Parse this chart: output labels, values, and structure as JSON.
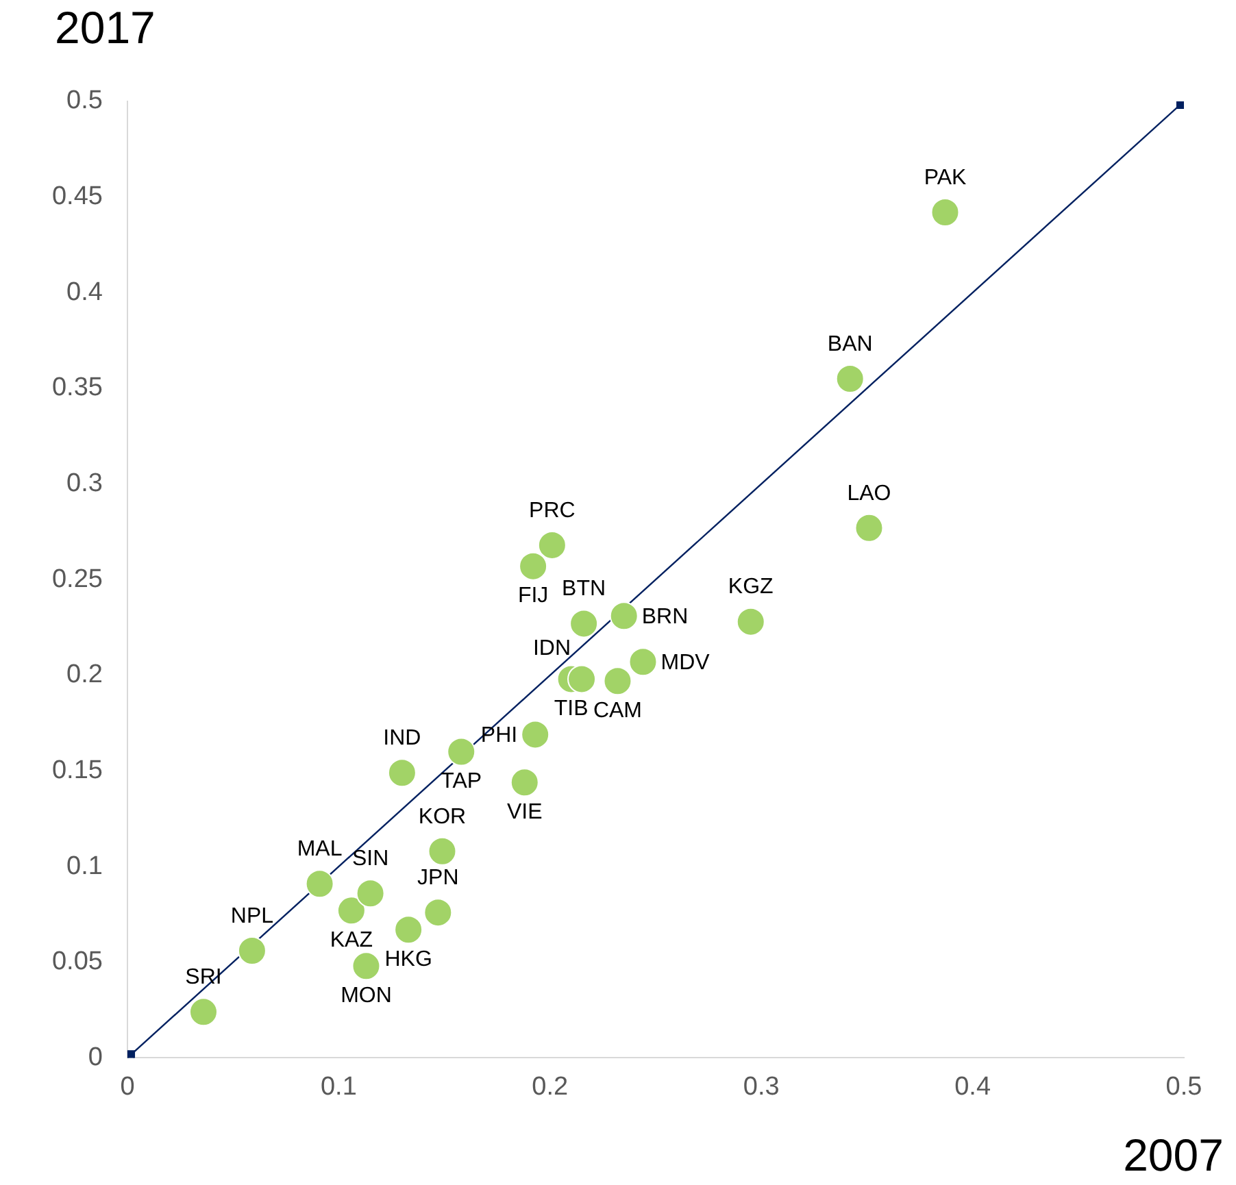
{
  "chart_data": {
    "type": "scatter",
    "xlabel": "2007",
    "ylabel": "2017",
    "xlim": [
      0,
      0.5
    ],
    "xticks": [
      0,
      0.1,
      0.2,
      0.3,
      0.4,
      0.5
    ],
    "ylim": [
      0,
      0.5
    ],
    "yticks": [
      0,
      0.05,
      0.1,
      0.15,
      0.2,
      0.25,
      0.3,
      0.35,
      0.4,
      0.45,
      0.5
    ],
    "grid": false,
    "marker": "circle",
    "series": [
      {
        "type": "line",
        "color": "#002060",
        "marker": "square",
        "x": [
          0,
          0.5
        ],
        "values": [
          0,
          0.5
        ]
      },
      {
        "type": "scatter",
        "color": "#a2d367",
        "x": [
          0.387,
          0.342,
          0.351,
          0.295,
          0.201,
          0.192,
          0.216,
          0.235,
          0.244,
          0.232,
          0.21,
          0.215,
          0.193,
          0.188,
          0.158,
          0.13,
          0.149,
          0.091,
          0.106,
          0.115,
          0.133,
          0.147,
          0.113,
          0.059,
          0.036
        ],
        "values": [
          0.442,
          0.355,
          0.277,
          0.228,
          0.268,
          0.257,
          0.227,
          0.231,
          0.207,
          0.197,
          0.198,
          0.198,
          0.169,
          0.144,
          0.16,
          0.149,
          0.108,
          0.091,
          0.077,
          0.086,
          0.067,
          0.076,
          0.048,
          0.056,
          0.024
        ]
      }
    ],
    "annotations": [
      {
        "text": "PAK",
        "x": 0.387,
        "y": 0.442
      },
      {
        "text": "BAN",
        "x": 0.342,
        "y": 0.355
      },
      {
        "text": "LAO",
        "x": 0.351,
        "y": 0.277
      },
      {
        "text": "KGZ",
        "x": 0.295,
        "y": 0.228
      },
      {
        "text": "PRC",
        "x": 0.201,
        "y": 0.268
      },
      {
        "text": "FIJ",
        "x": 0.192,
        "y": 0.257
      },
      {
        "text": "BTN",
        "x": 0.216,
        "y": 0.227
      },
      {
        "text": "BRN",
        "x": 0.235,
        "y": 0.231
      },
      {
        "text": "MDV",
        "x": 0.244,
        "y": 0.207
      },
      {
        "text": "CAM",
        "x": 0.232,
        "y": 0.197
      },
      {
        "text": "TIB",
        "x": 0.21,
        "y": 0.198
      },
      {
        "text": "IDN",
        "x": 0.215,
        "y": 0.198
      },
      {
        "text": "PHI",
        "x": 0.193,
        "y": 0.169
      },
      {
        "text": "VIE",
        "x": 0.188,
        "y": 0.144
      },
      {
        "text": "TAP",
        "x": 0.158,
        "y": 0.16
      },
      {
        "text": "IND",
        "x": 0.13,
        "y": 0.149
      },
      {
        "text": "KOR",
        "x": 0.149,
        "y": 0.108
      },
      {
        "text": "MAL",
        "x": 0.091,
        "y": 0.091
      },
      {
        "text": "KAZ",
        "x": 0.106,
        "y": 0.077
      },
      {
        "text": "SIN",
        "x": 0.115,
        "y": 0.086
      },
      {
        "text": "HKG",
        "x": 0.133,
        "y": 0.067
      },
      {
        "text": "JPN",
        "x": 0.147,
        "y": 0.076
      },
      {
        "text": "MON",
        "x": 0.113,
        "y": 0.048
      },
      {
        "text": "NPL",
        "x": 0.059,
        "y": 0.056
      },
      {
        "text": "SRI",
        "x": 0.036,
        "y": 0.024
      }
    ]
  }
}
